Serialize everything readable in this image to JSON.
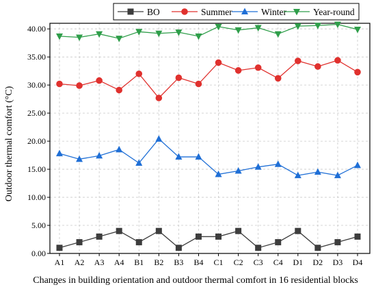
{
  "chart_data": {
    "type": "line",
    "xlabel": "Changes in building orientation and  outdoor thermal comfort in 16 residential blocks",
    "ylabel": "Outdoor thermal comfort (°C)",
    "categories": [
      "A1",
      "A2",
      "A3",
      "A4",
      "B1",
      "B2",
      "B3",
      "B4",
      "C1",
      "C2",
      "C3",
      "C4",
      "D1",
      "D2",
      "D3",
      "D4"
    ],
    "ylim": [
      0,
      41
    ],
    "yticks": [
      "0.00",
      "5.00",
      "10.00",
      "15.00",
      "20.00",
      "25.00",
      "30.00",
      "35.00",
      "40.00"
    ],
    "grid": true,
    "legend_position": "top",
    "series": [
      {
        "name": "BO",
        "color": "#3d3d3d",
        "marker": "square",
        "values": [
          1,
          2,
          3,
          4,
          2,
          4,
          1,
          3,
          3,
          4,
          1,
          2,
          4,
          1,
          2,
          3
        ]
      },
      {
        "name": "Summer",
        "color": "#e0312e",
        "marker": "circle",
        "values": [
          30.2,
          29.9,
          30.8,
          29.1,
          32.0,
          27.7,
          31.3,
          30.2,
          34.0,
          32.6,
          33.1,
          31.2,
          34.3,
          33.3,
          34.4,
          32.3
        ]
      },
      {
        "name": "Winter",
        "color": "#1f6fd6",
        "marker": "triangle-up",
        "values": [
          17.8,
          16.8,
          17.4,
          18.5,
          16.1,
          20.4,
          17.2,
          17.2,
          14.1,
          14.7,
          15.4,
          15.9,
          13.9,
          14.5,
          13.9,
          15.7
        ]
      },
      {
        "name": "Year-round",
        "color": "#2f9e4a",
        "marker": "triangle-down",
        "values": [
          38.7,
          38.5,
          39.1,
          38.3,
          39.5,
          39.2,
          39.4,
          38.7,
          40.4,
          39.8,
          40.2,
          39.1,
          40.5,
          40.6,
          40.8,
          39.9
        ]
      }
    ]
  }
}
